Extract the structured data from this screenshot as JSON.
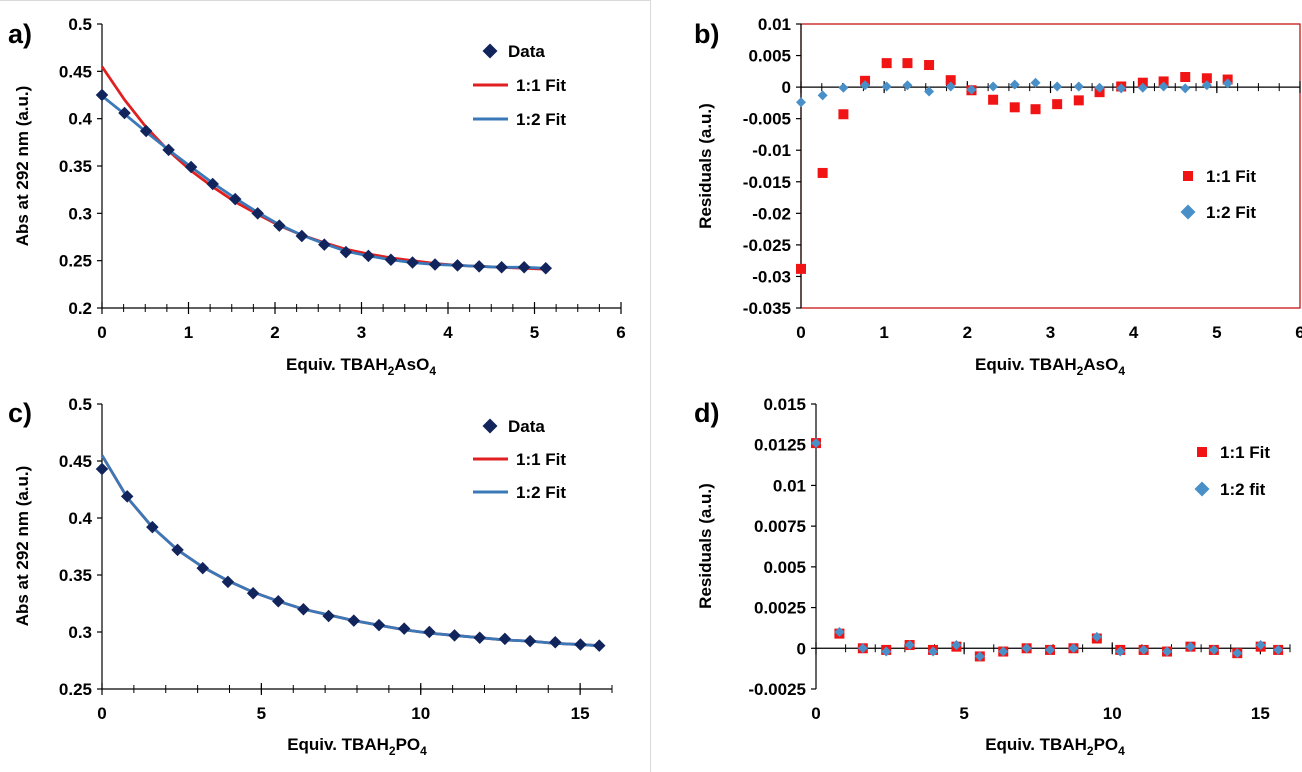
{
  "colors": {
    "data": "#12245c",
    "fit11": "#e02020",
    "fit12": "#3a78b8",
    "res11": "#f01414",
    "res12": "#4a90c8",
    "frame_b": "#c00000"
  },
  "chart_data": [
    {
      "id": "a",
      "type": "line",
      "panel_label": "a)",
      "xlabel_main": "Equiv. TBAH",
      "xlabel_sub1": "2",
      "xlabel_mid": "AsO",
      "xlabel_sub2": "4",
      "ylabel": "Abs at 292 nm (a.u.)",
      "xlim": [
        0,
        6
      ],
      "ylim": [
        0.2,
        0.5
      ],
      "xticks": [
        0,
        1,
        2,
        3,
        4,
        5,
        6
      ],
      "xticklabels": [
        "0",
        "1",
        "2",
        "3",
        "4",
        "5",
        "6"
      ],
      "yticks": [
        0.2,
        0.25,
        0.3,
        0.35,
        0.4,
        0.45,
        0.5
      ],
      "yticklabels": [
        "0.2",
        "0.25",
        "0.3",
        "0.35",
        "0.4",
        "0.45",
        "0.5"
      ],
      "legend": [
        "Data",
        "1:1 Fit",
        "1:2 Fit"
      ],
      "series": [
        {
          "name": "Data",
          "kind": "diamond",
          "x": [
            0,
            0.26,
            0.51,
            0.77,
            1.03,
            1.28,
            1.54,
            1.8,
            2.05,
            2.31,
            2.57,
            2.82,
            3.08,
            3.34,
            3.59,
            3.85,
            4.11,
            4.36,
            4.62,
            4.88,
            5.13
          ],
          "y": [
            0.425,
            0.406,
            0.387,
            0.367,
            0.349,
            0.331,
            0.315,
            0.3,
            0.287,
            0.276,
            0.267,
            0.259,
            0.255,
            0.251,
            0.248,
            0.246,
            0.245,
            0.244,
            0.243,
            0.243,
            0.242
          ]
        },
        {
          "name": "1:1 Fit",
          "kind": "line",
          "x": [
            0,
            0.26,
            0.51,
            0.77,
            1.03,
            1.28,
            1.54,
            1.8,
            2.05,
            2.31,
            2.57,
            2.82,
            3.08,
            3.34,
            3.59,
            3.85,
            4.11,
            4.36,
            4.62,
            4.88,
            5.13
          ],
          "y": [
            0.455,
            0.42,
            0.391,
            0.366,
            0.345,
            0.328,
            0.312,
            0.299,
            0.287,
            0.277,
            0.269,
            0.262,
            0.257,
            0.253,
            0.25,
            0.247,
            0.245,
            0.244,
            0.243,
            0.242,
            0.241
          ]
        },
        {
          "name": "1:2 Fit",
          "kind": "line",
          "x": [
            0,
            0.26,
            0.51,
            0.77,
            1.03,
            1.28,
            1.54,
            1.8,
            2.05,
            2.31,
            2.57,
            2.82,
            3.08,
            3.34,
            3.59,
            3.85,
            4.11,
            4.36,
            4.62,
            4.88,
            5.13
          ],
          "y": [
            0.424,
            0.405,
            0.386,
            0.367,
            0.349,
            0.332,
            0.316,
            0.301,
            0.288,
            0.277,
            0.268,
            0.26,
            0.255,
            0.251,
            0.248,
            0.246,
            0.245,
            0.244,
            0.243,
            0.243,
            0.242
          ]
        }
      ]
    },
    {
      "id": "b",
      "type": "scatter",
      "panel_label": "b)",
      "xlabel_main": "Equiv. TBAH",
      "xlabel_sub1": "2",
      "xlabel_mid": "AsO",
      "xlabel_sub2": "4",
      "ylabel": "Residuals (a.u.)",
      "xlim": [
        0,
        6
      ],
      "ylim": [
        -0.035,
        0.01
      ],
      "xticks": [
        0,
        1,
        2,
        3,
        4,
        5,
        6
      ],
      "xticklabels": [
        "0",
        "1",
        "2",
        "3",
        "4",
        "5",
        "6"
      ],
      "yticks": [
        -0.035,
        -0.03,
        -0.025,
        -0.02,
        -0.015,
        -0.01,
        -0.005,
        0,
        0.005,
        0.01
      ],
      "yticklabels": [
        "-0.035",
        "-0.03",
        "-0.025",
        "-0.02",
        "-0.015",
        "-0.01",
        "-0.005",
        "0",
        "0.005",
        "0.01"
      ],
      "legend": [
        "1:1 Fit",
        "1:2 Fit"
      ],
      "series": [
        {
          "name": "1:1 Fit",
          "kind": "square",
          "x": [
            0,
            0.26,
            0.51,
            0.77,
            1.03,
            1.28,
            1.54,
            1.8,
            2.05,
            2.31,
            2.57,
            2.82,
            3.08,
            3.34,
            3.59,
            3.85,
            4.11,
            4.36,
            4.62,
            4.88,
            5.13
          ],
          "y": [
            -0.0288,
            -0.0136,
            -0.0043,
            0.001,
            0.0038,
            0.0038,
            0.0035,
            0.0011,
            -0.0005,
            -0.002,
            -0.0032,
            -0.0035,
            -0.0027,
            -0.0021,
            -0.0008,
            0.0001,
            0.0007,
            0.0009,
            0.0016,
            0.0014,
            0.0012
          ]
        },
        {
          "name": "1:2 Fit",
          "kind": "diamond",
          "x": [
            0,
            0.26,
            0.51,
            0.77,
            1.03,
            1.28,
            1.54,
            1.8,
            2.05,
            2.31,
            2.57,
            2.82,
            3.08,
            3.34,
            3.59,
            3.85,
            4.11,
            4.36,
            4.62,
            4.88,
            5.13
          ],
          "y": [
            -0.0024,
            -0.0013,
            -0.0001,
            0.0003,
            0.0001,
            0.0003,
            -0.0007,
            0.0001,
            -0.0004,
            0.0001,
            0.0004,
            0.0007,
            0.0001,
            0.0001,
            -0.0001,
            -0.0002,
            -0.0001,
            0.0001,
            -0.0002,
            0.0003,
            0.0006
          ]
        }
      ]
    },
    {
      "id": "c",
      "type": "line",
      "panel_label": "c)",
      "xlabel_main": "Equiv. TBAH",
      "xlabel_sub1": "2",
      "xlabel_mid": "PO",
      "xlabel_sub2": "4",
      "ylabel": "Abs at 292 nm (a.u.)",
      "xlim": [
        0,
        16
      ],
      "ylim": [
        0.25,
        0.5
      ],
      "xticks": [
        0,
        5,
        10,
        15
      ],
      "xticklabels": [
        "0",
        "5",
        "10",
        "15"
      ],
      "yticks": [
        0.25,
        0.3,
        0.35,
        0.4,
        0.45,
        0.5
      ],
      "yticklabels": [
        "0.25",
        "0.3",
        "0.35",
        "0.4",
        "0.45",
        "0.5"
      ],
      "legend": [
        "Data",
        "1:1 Fit",
        "1:2 Fit"
      ],
      "series": [
        {
          "name": "Data",
          "kind": "diamond",
          "x": [
            0,
            0.79,
            1.58,
            2.37,
            3.16,
            3.95,
            4.74,
            5.53,
            6.32,
            7.11,
            7.9,
            8.69,
            9.48,
            10.27,
            11.06,
            11.85,
            12.64,
            13.43,
            14.22,
            15.01,
            15.6
          ],
          "y": [
            0.443,
            0.419,
            0.392,
            0.372,
            0.356,
            0.344,
            0.334,
            0.327,
            0.32,
            0.314,
            0.31,
            0.306,
            0.303,
            0.3,
            0.297,
            0.295,
            0.294,
            0.292,
            0.291,
            0.289,
            0.288
          ]
        },
        {
          "name": "1:1 Fit",
          "kind": "line",
          "x": [
            0,
            0.79,
            1.58,
            2.37,
            3.16,
            3.95,
            4.74,
            5.53,
            6.32,
            7.11,
            7.9,
            8.69,
            9.48,
            10.27,
            11.06,
            11.85,
            12.64,
            13.43,
            14.22,
            15.01,
            15.6
          ],
          "y": [
            0.455,
            0.418,
            0.392,
            0.372,
            0.357,
            0.345,
            0.335,
            0.327,
            0.32,
            0.315,
            0.31,
            0.306,
            0.302,
            0.299,
            0.297,
            0.295,
            0.293,
            0.292,
            0.29,
            0.289,
            0.288
          ]
        },
        {
          "name": "1:2 Fit",
          "kind": "line",
          "x": [
            0,
            0.79,
            1.58,
            2.37,
            3.16,
            3.95,
            4.74,
            5.53,
            6.32,
            7.11,
            7.9,
            8.69,
            9.48,
            10.27,
            11.06,
            11.85,
            12.64,
            13.43,
            14.22,
            15.01,
            15.6
          ],
          "y": [
            0.455,
            0.418,
            0.392,
            0.372,
            0.357,
            0.345,
            0.335,
            0.327,
            0.32,
            0.315,
            0.31,
            0.306,
            0.302,
            0.299,
            0.297,
            0.295,
            0.293,
            0.292,
            0.29,
            0.289,
            0.288
          ]
        }
      ]
    },
    {
      "id": "d",
      "type": "scatter",
      "panel_label": "d)",
      "xlabel_main": "Equiv. TBAH",
      "xlabel_sub1": "2",
      "xlabel_mid": "PO",
      "xlabel_sub2": "4",
      "ylabel": "Residuals (a.u.)",
      "xlim": [
        0,
        16
      ],
      "ylim": [
        -0.0025,
        0.015
      ],
      "xticks": [
        0,
        5,
        10,
        15
      ],
      "xticklabels": [
        "0",
        "5",
        "10",
        "15"
      ],
      "yticks": [
        -0.0025,
        0,
        0.0025,
        0.005,
        0.0075,
        0.01,
        0.0125,
        0.015
      ],
      "yticklabels": [
        "-0.0025",
        "0",
        "0.0025",
        "0.005",
        "0.0075",
        "0.01",
        "0.0125",
        "0.015"
      ],
      "legend": [
        "1:1 Fit",
        "1:2 fit"
      ],
      "series": [
        {
          "name": "1:1 Fit",
          "kind": "square",
          "x": [
            0,
            0.79,
            1.58,
            2.37,
            3.16,
            3.95,
            4.74,
            5.53,
            6.32,
            7.11,
            7.9,
            8.69,
            9.48,
            10.27,
            11.06,
            11.85,
            12.64,
            13.43,
            14.22,
            15.01,
            15.6
          ],
          "y": [
            0.0126,
            0.0009,
            0,
            -0.0001,
            0.0002,
            -0.0001,
            0.0001,
            -0.0005,
            -0.0002,
            0,
            -0.0001,
            0,
            0.0006,
            -0.0001,
            -0.0001,
            -0.0002,
            0.0001,
            -0.0001,
            -0.0003,
            0.0001,
            -0.0001
          ]
        },
        {
          "name": "1:2 fit",
          "kind": "diamond",
          "x": [
            0,
            0.79,
            1.58,
            2.37,
            3.16,
            3.95,
            4.74,
            5.53,
            6.32,
            7.11,
            7.9,
            8.69,
            9.48,
            10.27,
            11.06,
            11.85,
            12.64,
            13.43,
            14.22,
            15.01,
            15.6
          ],
          "y": [
            0.0126,
            0.001,
            0,
            -0.0002,
            0.0002,
            -0.0002,
            0.0002,
            -0.0005,
            -0.0002,
            0,
            -0.0001,
            0,
            0.0007,
            -0.0002,
            -0.0001,
            -0.0002,
            0.0001,
            -0.0001,
            -0.0003,
            0.0002,
            -0.0001
          ]
        }
      ]
    }
  ]
}
